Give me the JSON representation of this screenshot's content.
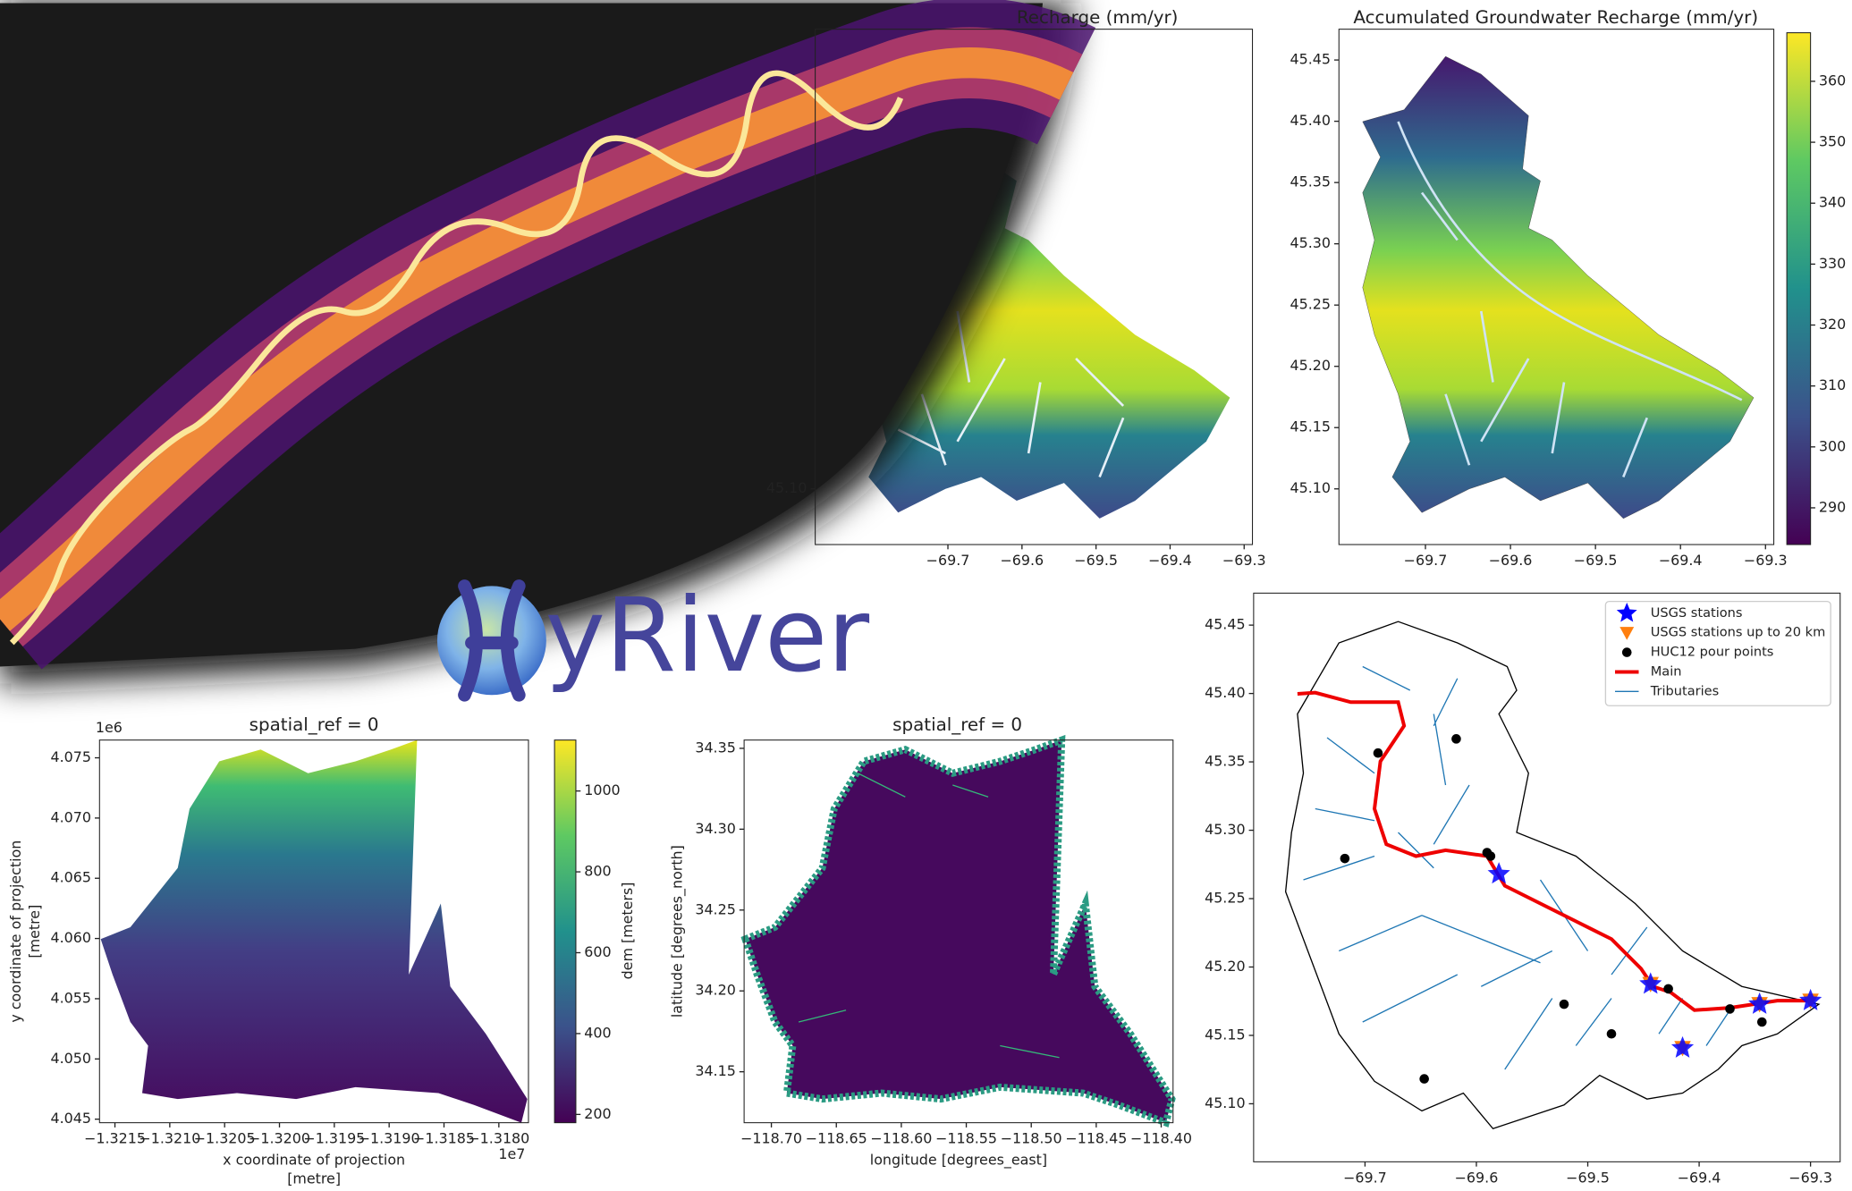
{
  "logo": {
    "text": "yRiver"
  },
  "panels": [
    {
      "title": "Recharge (mm/yr)",
      "xticks": [
        "−69.7",
        "−69.6",
        "−69.5",
        "−69.4",
        "−69.3"
      ],
      "yticks": [
        "45.10"
      ]
    },
    {
      "title": "Accumulated Groundwater Recharge (mm/yr)",
      "xticks": [
        "−69.7",
        "−69.6",
        "−69.5",
        "−69.4",
        "−69.3"
      ],
      "yticks": [
        "45.45",
        "45.40",
        "45.35",
        "45.30",
        "45.25",
        "45.20",
        "45.15",
        "45.10"
      ],
      "colorbar_ticks": [
        "360",
        "350",
        "340",
        "330",
        "320",
        "310",
        "300",
        "290"
      ]
    },
    {
      "title": "spatial_ref = 0",
      "x_offset": "1e7",
      "y_offset": "1e6",
      "xlabel": [
        "x coordinate of projection",
        "[metre]"
      ],
      "ylabel": [
        "y coordinate of projection",
        "[metre]"
      ],
      "xticks": [
        "−1.3215",
        "−1.3210",
        "−1.3205",
        "−1.3200",
        "−1.3195",
        "−1.3190",
        "−1.3185",
        "−1.3180"
      ],
      "yticks": [
        "4.075",
        "4.070",
        "4.065",
        "4.060",
        "4.055",
        "4.050",
        "4.045"
      ],
      "colorbar_ticks": [
        "1000",
        "800",
        "600",
        "400",
        "200"
      ],
      "colorbar_label": "dem [meters]"
    },
    {
      "title": "spatial_ref = 0",
      "xlabel": [
        "longitude [degrees_east]"
      ],
      "ylabel": [
        "latitude [degrees_north]"
      ],
      "xticks": [
        "−118.70",
        "−118.65",
        "−118.60",
        "−118.55",
        "−118.50",
        "−118.45",
        "−118.40"
      ],
      "yticks": [
        "34.35",
        "34.30",
        "34.25",
        "34.20",
        "34.15"
      ]
    },
    {
      "xticks": [
        "−69.7",
        "−69.6",
        "−69.5",
        "−69.4",
        "−69.3"
      ],
      "yticks": [
        "45.45",
        "45.40",
        "45.35",
        "45.30",
        "45.25",
        "45.20",
        "45.15",
        "45.10"
      ],
      "legend": [
        "USGS stations",
        "USGS stations up to 20 km",
        "HUC12 pour points",
        "Main",
        "Tributaries"
      ]
    }
  ]
}
